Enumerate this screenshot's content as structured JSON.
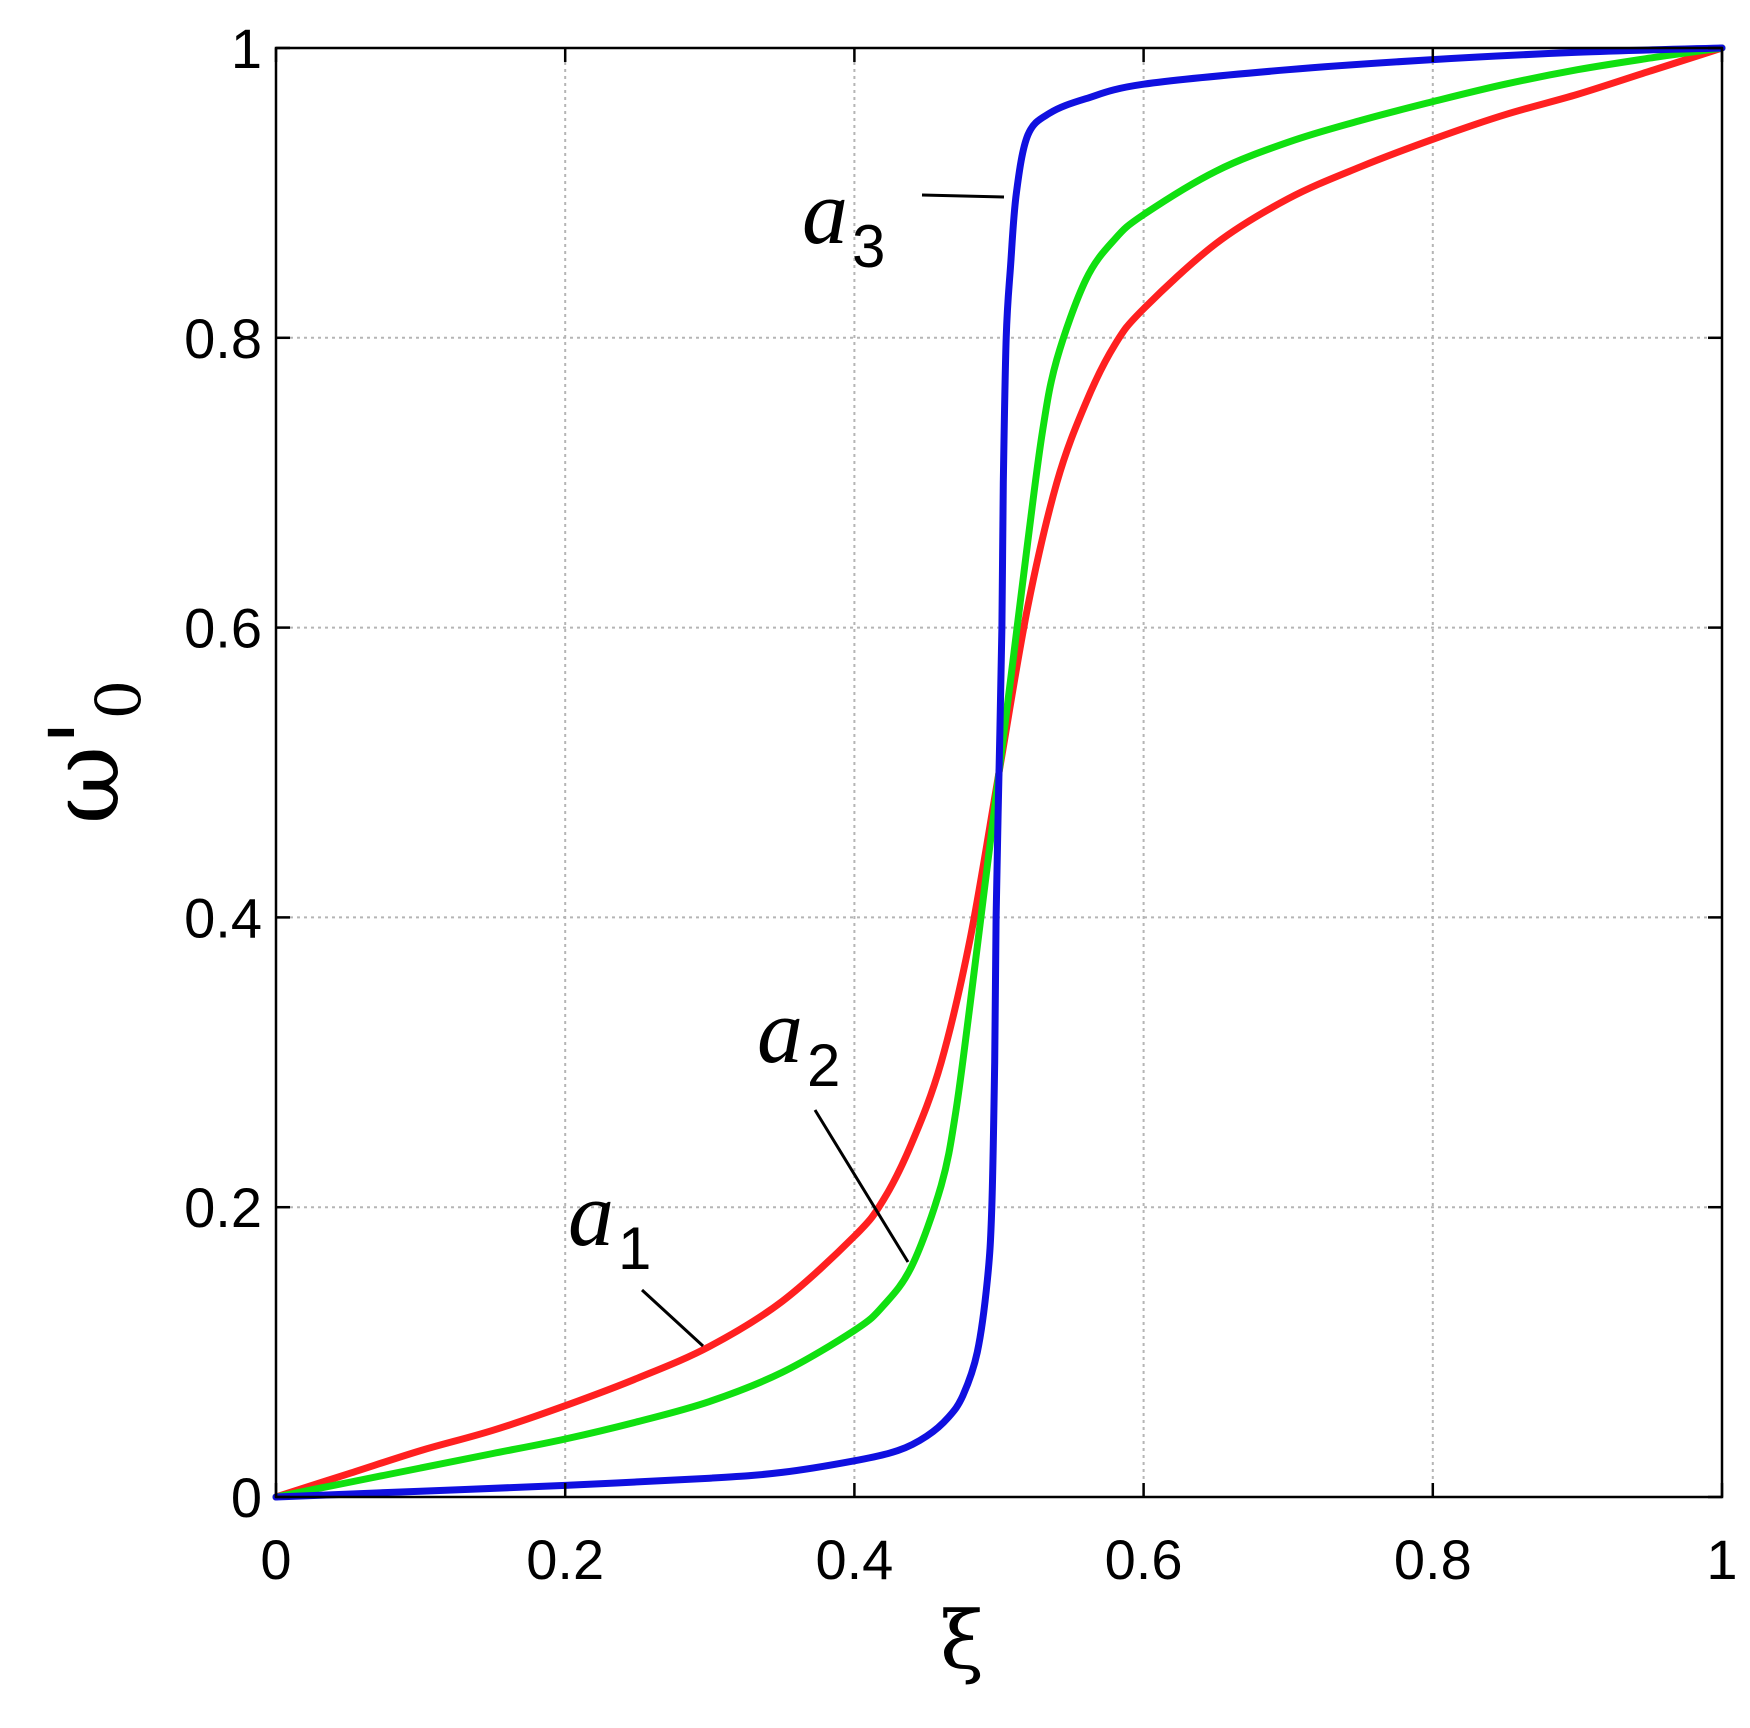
{
  "chart_data": {
    "type": "line",
    "title": "",
    "xlabel": "ξ",
    "ylabel": "ω'0",
    "ylabel_parts": {
      "base": "ω",
      "prime": "'",
      "sub": "0"
    },
    "xlim": [
      0,
      1
    ],
    "ylim": [
      0,
      1
    ],
    "grid": true,
    "x_ticks": [
      "0",
      "0.2",
      "0.4",
      "0.6",
      "0.8",
      "1"
    ],
    "y_ticks": [
      "0",
      "0.2",
      "0.4",
      "0.6",
      "0.8",
      "1"
    ],
    "series": [
      {
        "name": "a1",
        "color": "#ff2020",
        "points": [
          [
            0,
            0
          ],
          [
            0.05,
            0.016
          ],
          [
            0.1,
            0.032
          ],
          [
            0.15,
            0.046
          ],
          [
            0.2,
            0.063
          ],
          [
            0.25,
            0.082
          ],
          [
            0.3,
            0.104
          ],
          [
            0.35,
            0.135
          ],
          [
            0.4,
            0.18
          ],
          [
            0.42,
            0.205
          ],
          [
            0.44,
            0.245
          ],
          [
            0.46,
            0.3
          ],
          [
            0.48,
            0.385
          ],
          [
            0.5,
            0.5
          ],
          [
            0.52,
            0.615
          ],
          [
            0.54,
            0.7
          ],
          [
            0.56,
            0.755
          ],
          [
            0.58,
            0.795
          ],
          [
            0.6,
            0.82
          ],
          [
            0.65,
            0.865
          ],
          [
            0.7,
            0.896
          ],
          [
            0.75,
            0.918
          ],
          [
            0.8,
            0.937
          ],
          [
            0.85,
            0.954
          ],
          [
            0.9,
            0.968
          ],
          [
            0.95,
            0.984
          ],
          [
            1,
            1
          ]
        ]
      },
      {
        "name": "a2",
        "color": "#10e010",
        "points": [
          [
            0,
            0
          ],
          [
            0.05,
            0.01
          ],
          [
            0.1,
            0.02
          ],
          [
            0.15,
            0.03
          ],
          [
            0.2,
            0.04
          ],
          [
            0.25,
            0.052
          ],
          [
            0.3,
            0.066
          ],
          [
            0.35,
            0.086
          ],
          [
            0.4,
            0.115
          ],
          [
            0.42,
            0.132
          ],
          [
            0.44,
            0.16
          ],
          [
            0.46,
            0.215
          ],
          [
            0.47,
            0.265
          ],
          [
            0.48,
            0.34
          ],
          [
            0.49,
            0.42
          ],
          [
            0.5,
            0.5
          ],
          [
            0.51,
            0.58
          ],
          [
            0.52,
            0.66
          ],
          [
            0.53,
            0.735
          ],
          [
            0.54,
            0.785
          ],
          [
            0.56,
            0.84
          ],
          [
            0.58,
            0.868
          ],
          [
            0.6,
            0.885
          ],
          [
            0.65,
            0.915
          ],
          [
            0.7,
            0.935
          ],
          [
            0.75,
            0.95
          ],
          [
            0.8,
            0.963
          ],
          [
            0.85,
            0.975
          ],
          [
            0.9,
            0.985
          ],
          [
            0.95,
            0.993
          ],
          [
            1,
            1
          ]
        ]
      },
      {
        "name": "a3",
        "color": "#1010e0",
        "points": [
          [
            0,
            0
          ],
          [
            0.1,
            0.004
          ],
          [
            0.2,
            0.008
          ],
          [
            0.3,
            0.013
          ],
          [
            0.35,
            0.017
          ],
          [
            0.4,
            0.025
          ],
          [
            0.43,
            0.032
          ],
          [
            0.45,
            0.042
          ],
          [
            0.465,
            0.055
          ],
          [
            0.475,
            0.07
          ],
          [
            0.485,
            0.1
          ],
          [
            0.492,
            0.15
          ],
          [
            0.495,
            0.2
          ],
          [
            0.497,
            0.3
          ],
          [
            0.498,
            0.4
          ],
          [
            0.5,
            0.5
          ],
          [
            0.502,
            0.6
          ],
          [
            0.503,
            0.7
          ],
          [
            0.505,
            0.8
          ],
          [
            0.508,
            0.85
          ],
          [
            0.512,
            0.9
          ],
          [
            0.52,
            0.94
          ],
          [
            0.535,
            0.955
          ],
          [
            0.56,
            0.965
          ],
          [
            0.6,
            0.975
          ],
          [
            0.7,
            0.985
          ],
          [
            0.8,
            0.992
          ],
          [
            0.9,
            0.997
          ],
          [
            1,
            1
          ]
        ]
      }
    ],
    "annotations": [
      {
        "base": "a",
        "sub": "1"
      },
      {
        "base": "a",
        "sub": "2"
      },
      {
        "base": "a",
        "sub": "3"
      }
    ]
  }
}
